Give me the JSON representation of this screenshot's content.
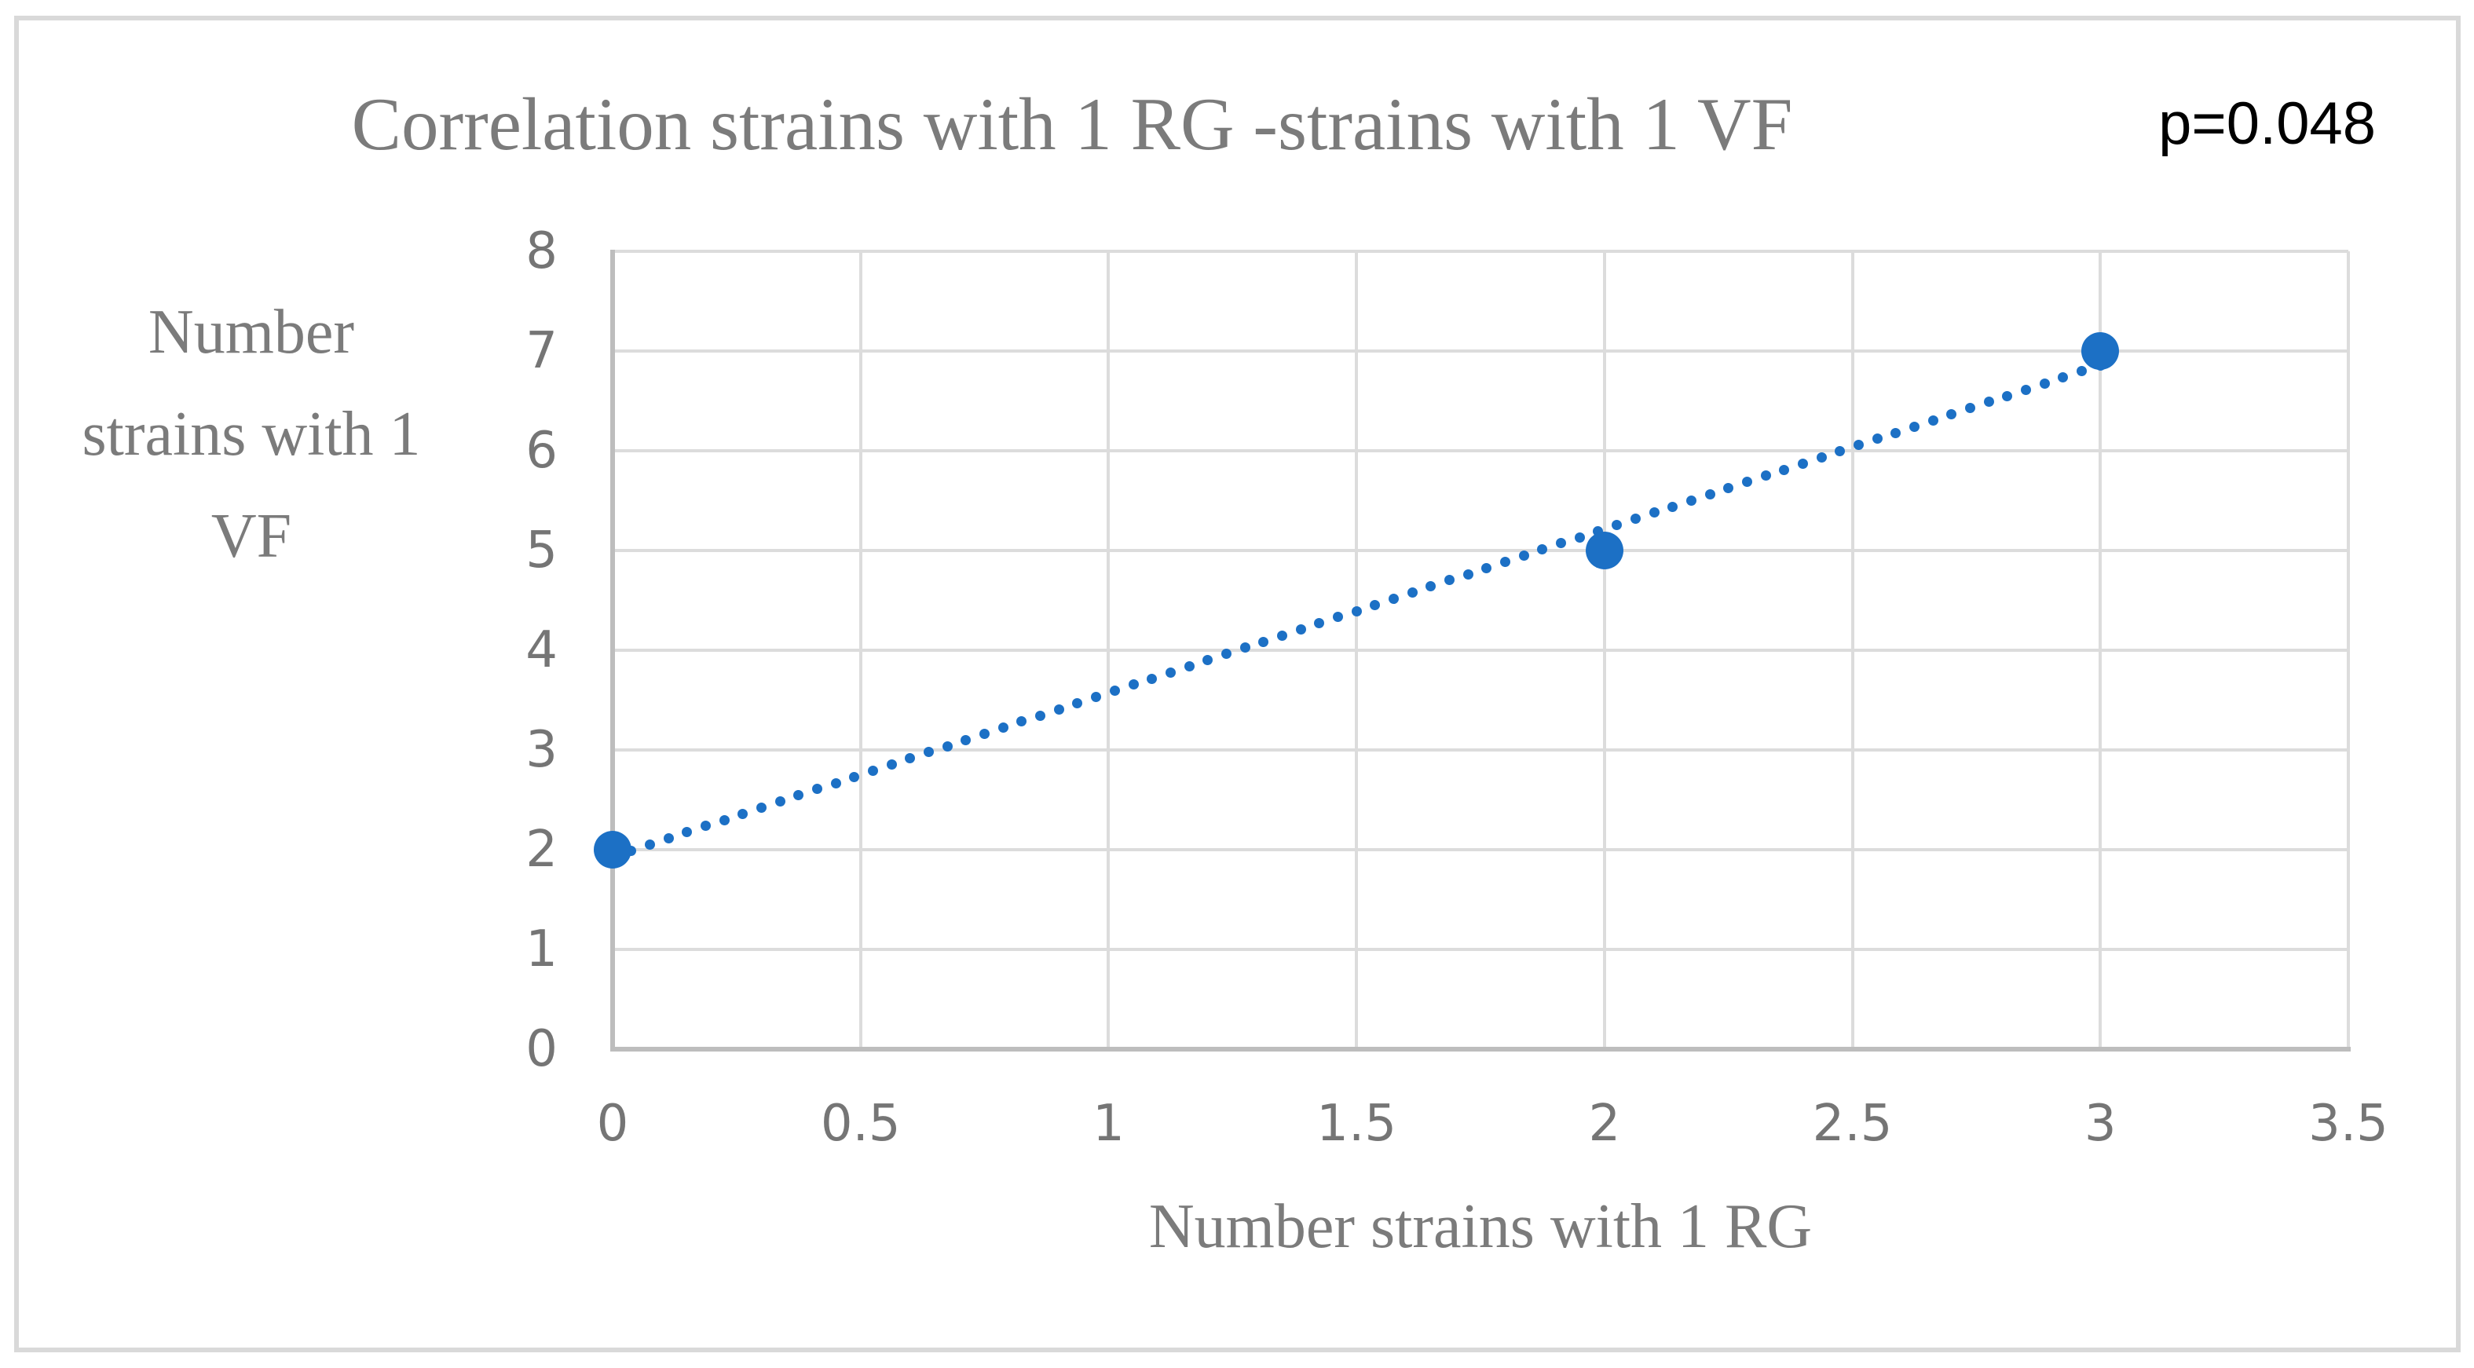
{
  "figure": {
    "background": "#ffffff",
    "border_color": "#d9d9d9"
  },
  "chart_data": {
    "type": "scatter",
    "title": "Correlation strains with 1 RG -strains with 1 VF",
    "annotation": "p=0.048",
    "xlabel": "Number strains with 1 RG",
    "ylabel": "Number strains with 1 VF",
    "ylabel_lines": [
      "Number",
      "strains with 1",
      "VF"
    ],
    "points": [
      {
        "x": 0,
        "y": 2
      },
      {
        "x": 2,
        "y": 5
      },
      {
        "x": 3,
        "y": 7
      }
    ],
    "trendline": {
      "style": "dotted",
      "slope": 1.643,
      "intercept": 1.929,
      "x_range": [
        0,
        3
      ]
    },
    "xlim": [
      0,
      3.5
    ],
    "ylim": [
      0,
      8
    ],
    "xticks": [
      0,
      0.5,
      1,
      1.5,
      2,
      2.5,
      3,
      3.5
    ],
    "yticks": [
      0,
      1,
      2,
      3,
      4,
      5,
      6,
      7,
      8
    ],
    "grid": true,
    "legend": false,
    "colors": {
      "marker": "#1c70c5",
      "trendline": "#1c70c5",
      "gridline": "#dcdcdc",
      "axis_line": "#bdbdbd",
      "title_text": "#7b7b7b",
      "tick_text": "#757575",
      "annotation_text": "#000000"
    }
  }
}
